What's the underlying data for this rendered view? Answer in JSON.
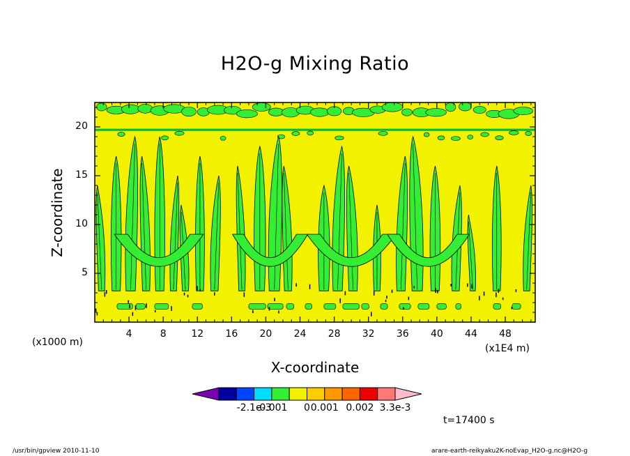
{
  "chart_data": {
    "type": "heatmap",
    "title": "H2O-g Mixing Ratio",
    "xlabel": "X-coordinate",
    "ylabel": "Z-coordinate",
    "x_unit": "(x1E4 m)",
    "y_unit": "(x1000 m)",
    "xlim": [
      0,
      51.5
    ],
    "ylim": [
      0,
      22.5
    ],
    "x_ticks": [
      4,
      8,
      12,
      16,
      20,
      24,
      28,
      32,
      36,
      40,
      44,
      48
    ],
    "y_ticks": [
      5,
      10,
      15,
      20
    ],
    "x_tick_labels": [
      "4",
      "8",
      "12",
      "16",
      "20",
      "24",
      "28",
      "32",
      "36",
      "40",
      "44",
      "48"
    ],
    "y_tick_labels": [
      "5",
      "10",
      "15",
      "20"
    ],
    "background_level": "0 to 0.001",
    "background_color": "#f2f200",
    "anomaly_color": "#33ee33",
    "plumes": [
      {
        "x": 0.8,
        "top": 14,
        "width": 0.6
      },
      {
        "x": 2.5,
        "top": 17,
        "width": 0.8
      },
      {
        "x": 4.2,
        "top": 19,
        "width": 0.9
      },
      {
        "x": 6.0,
        "top": 17,
        "width": 0.7
      },
      {
        "x": 7.6,
        "top": 19,
        "width": 0.8
      },
      {
        "x": 9.2,
        "top": 15,
        "width": 0.6
      },
      {
        "x": 10.6,
        "top": 12,
        "width": 0.6
      },
      {
        "x": 12.3,
        "top": 17,
        "width": 0.7
      },
      {
        "x": 14.0,
        "top": 15,
        "width": 0.7
      },
      {
        "x": 17.2,
        "top": 16,
        "width": 0.6
      },
      {
        "x": 19.3,
        "top": 18,
        "width": 0.9
      },
      {
        "x": 21.0,
        "top": 19,
        "width": 1.0
      },
      {
        "x": 22.6,
        "top": 16,
        "width": 0.7
      },
      {
        "x": 26.8,
        "top": 14,
        "width": 0.9
      },
      {
        "x": 28.4,
        "top": 18,
        "width": 0.9
      },
      {
        "x": 30.2,
        "top": 16,
        "width": 0.8
      },
      {
        "x": 33.0,
        "top": 12,
        "width": 0.6
      },
      {
        "x": 35.8,
        "top": 17,
        "width": 0.8
      },
      {
        "x": 37.7,
        "top": 19,
        "width": 1.0
      },
      {
        "x": 39.8,
        "top": 16,
        "width": 0.8
      },
      {
        "x": 42.2,
        "top": 14,
        "width": 0.7
      },
      {
        "x": 44.2,
        "top": 11,
        "width": 0.5
      },
      {
        "x": 47.0,
        "top": 16,
        "width": 0.7
      },
      {
        "x": 50.5,
        "top": 14,
        "width": 0.6
      }
    ],
    "colorbar": {
      "colors": [
        "#7a00b4",
        "#0000a0",
        "#0044ff",
        "#00ddff",
        "#33ee33",
        "#f2f200",
        "#ffcc00",
        "#ff9900",
        "#ff6600",
        "#ee0000",
        "#ff7777",
        "#ffbbcc"
      ],
      "labels": [
        "-2.1e-3",
        "-0.001",
        "0",
        "0.001",
        "0.002",
        "3.3e-3"
      ],
      "label_after_box": [
        2,
        3,
        5,
        6,
        8,
        10
      ]
    },
    "time_label": "t=17400 s"
  },
  "footer": {
    "left": "/usr/bin/gpview   2010-11-10",
    "right": "arare-earth-reikyaku2K-noEvap_H2O-g.nc@H2O-g"
  }
}
